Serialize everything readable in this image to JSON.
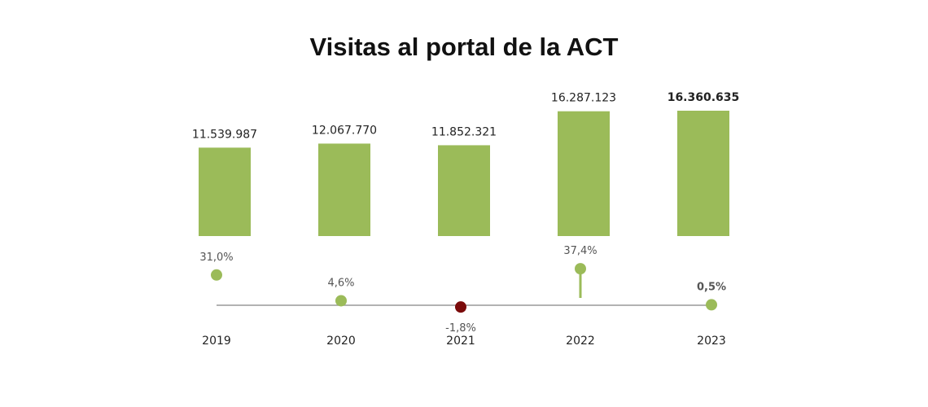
{
  "chart_data": {
    "type": "bar",
    "title": "Visitas al portal de la ACT",
    "categories": [
      "2019",
      "2020",
      "2021",
      "2022",
      "2023"
    ],
    "values": [
      11539987,
      12067770,
      11852321,
      16287123,
      16360635
    ],
    "value_labels": [
      "11.539.987",
      "12.067.770",
      "11.852.321",
      "16.287.123",
      "16.360.635"
    ],
    "highlight_last": true,
    "growth": {
      "type": "line-dots",
      "values": [
        31.0,
        4.6,
        -1.8,
        37.4,
        0.5
      ],
      "labels": [
        "31,0%",
        "4,6%",
        "-1,8%",
        "37,4%",
        "0,5%"
      ]
    },
    "colors": {
      "bar": "#9bbb59",
      "positive_dot": "#9bbb59",
      "negative_dot": "#7a0a0a",
      "baseline": "#999999"
    },
    "grid": false
  }
}
